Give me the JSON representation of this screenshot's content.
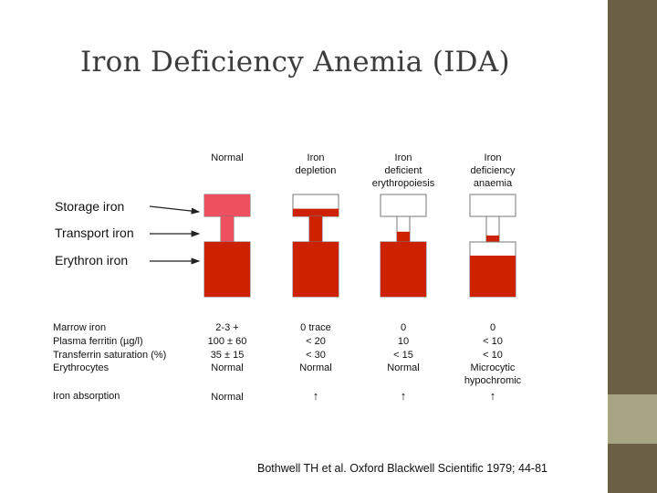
{
  "slide": {
    "title": "Iron Deficiency Anemia (IDA)",
    "citation": "Bothwell TH et al. Oxford Blackwell Scientific 1979; 44-81"
  },
  "colors": {
    "iron_fill": "#cc2200",
    "storage_pink": "#ee5060",
    "outline": "#777777",
    "sidebar_dark": "#6b5f45",
    "sidebar_light": "#a7a583"
  },
  "stages": [
    {
      "label_lines": [
        "Normal"
      ],
      "storage_fill": 1.0,
      "transport_fill": 1.0,
      "erythron_fill": 1.0,
      "storage_color": "pink",
      "storage_stroke": false,
      "storage_top_fill": 1.0
    },
    {
      "label_lines": [
        "Iron",
        "depletion"
      ],
      "storage_fill": 0.35,
      "transport_fill": 1.0,
      "erythron_fill": 1.0,
      "storage_color": "red"
    },
    {
      "label_lines": [
        "Iron",
        "deficient",
        "erythropoiesis"
      ],
      "storage_fill": 0.0,
      "transport_fill": 0.4,
      "erythron_fill": 1.0,
      "storage_color": "red"
    },
    {
      "label_lines": [
        "Iron",
        "deficiency",
        "anaemia"
      ],
      "storage_fill": 0.0,
      "transport_fill": 0.25,
      "erythron_fill": 0.75,
      "storage_color": "red"
    }
  ],
  "compartments": {
    "storage": "Storage iron",
    "transport": "Transport iron",
    "erythron": "Erythron iron"
  },
  "table": {
    "row_labels": [
      "Marrow iron",
      "Plasma ferritin (µg/l)",
      "Transferrin saturation (%)",
      "Erythrocytes"
    ],
    "absorption_label": "Iron absorption",
    "columns": [
      {
        "values": [
          [
            "2-3 +"
          ],
          [
            "100 ± 60"
          ],
          [
            "35 ± 15"
          ],
          [
            "Normal"
          ]
        ],
        "absorption": "Normal"
      },
      {
        "values": [
          [
            "0 trace"
          ],
          [
            "< 20"
          ],
          [
            "< 30"
          ],
          [
            "Normal"
          ]
        ],
        "absorption": "↑"
      },
      {
        "values": [
          [
            "0"
          ],
          [
            "10"
          ],
          [
            "< 15"
          ],
          [
            "Normal"
          ]
        ],
        "absorption": "↑"
      },
      {
        "values": [
          [
            "0"
          ],
          [
            "< 10"
          ],
          [
            "< 10"
          ],
          [
            "Microcytic",
            "hypochromic"
          ]
        ],
        "absorption": "↑"
      }
    ]
  }
}
